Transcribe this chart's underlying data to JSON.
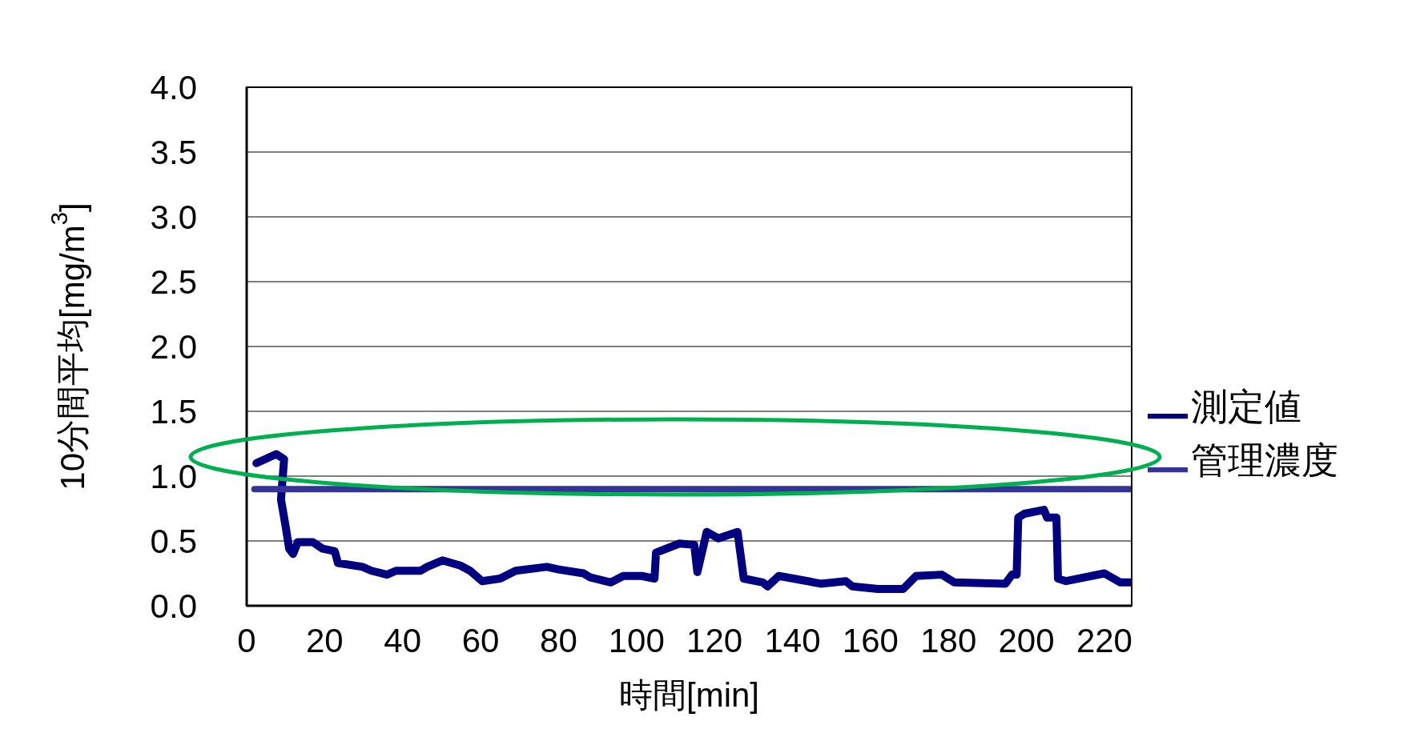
{
  "chart_data": {
    "type": "line",
    "xlabel": "時間[min]",
    "ylabel": "10分間平均[mg/m$^{3}$]",
    "xlim": [
      0,
      227
    ],
    "xticks": [
      0,
      20,
      40,
      60,
      80,
      100,
      120,
      140,
      160,
      180,
      200,
      220
    ],
    "ylim": [
      0,
      4
    ],
    "yticks": [
      {
        "value": 0,
        "label": "0.0"
      },
      {
        "value": 0.5,
        "label": "0.5"
      },
      {
        "value": 1,
        "label": "1.0"
      },
      {
        "value": 1.5,
        "label": "1.5"
      },
      {
        "value": 2,
        "label": "2.0"
      },
      {
        "value": 2.5,
        "label": "2.5"
      },
      {
        "value": 3,
        "label": "3.0"
      },
      {
        "value": 3.5,
        "label": "3.5"
      },
      {
        "value": 4,
        "label": "4.0"
      }
    ],
    "grid": "y",
    "legend": "right",
    "marker": "none",
    "line_style": "solid",
    "series": [
      {
        "name": "測定値",
        "color": "#000080",
        "x": [
          2.5,
          7.6,
          9.6,
          8.8,
          10,
          10.9,
          11.9,
          13.1,
          17,
          19.5,
          22.6,
          23.4,
          29.7,
          32,
          36,
          38.3,
          44.6,
          46.3,
          50.2,
          54.8,
          57.3,
          60.4,
          65,
          69,
          77,
          80,
          86.4,
          88,
          93.4,
          96.6,
          101.3,
          104.6,
          105,
          111,
          114.8,
          115.6,
          118,
          121,
          125.9,
          127.5,
          132.4,
          133.6,
          136.5,
          143.9,
          147.2,
          153.7,
          155.3,
          161.9,
          168.4,
          171.7,
          178.3,
          181.5,
          194.6,
          196.3,
          197.5,
          197.9,
          199.5,
          204.5,
          205.3,
          207.7,
          208.1,
          210.2,
          220,
          224.1,
          226.5
        ],
        "values": [
          1.1,
          1.17,
          1.13,
          0.82,
          0.61,
          0.44,
          0.4,
          0.49,
          0.49,
          0.44,
          0.42,
          0.33,
          0.3,
          0.27,
          0.24,
          0.27,
          0.27,
          0.3,
          0.35,
          0.31,
          0.27,
          0.19,
          0.21,
          0.27,
          0.3,
          0.28,
          0.25,
          0.22,
          0.18,
          0.23,
          0.23,
          0.21,
          0.41,
          0.48,
          0.47,
          0.26,
          0.57,
          0.52,
          0.57,
          0.21,
          0.18,
          0.15,
          0.23,
          0.19,
          0.17,
          0.19,
          0.15,
          0.13,
          0.13,
          0.23,
          0.24,
          0.18,
          0.17,
          0.24,
          0.24,
          0.68,
          0.71,
          0.74,
          0.68,
          0.68,
          0.21,
          0.19,
          0.25,
          0.18,
          0.18
        ]
      },
      {
        "name": "管理濃度",
        "color": "#333399",
        "x": [
          2,
          227
        ],
        "values": [
          0.9,
          0.9
        ]
      }
    ]
  }
}
